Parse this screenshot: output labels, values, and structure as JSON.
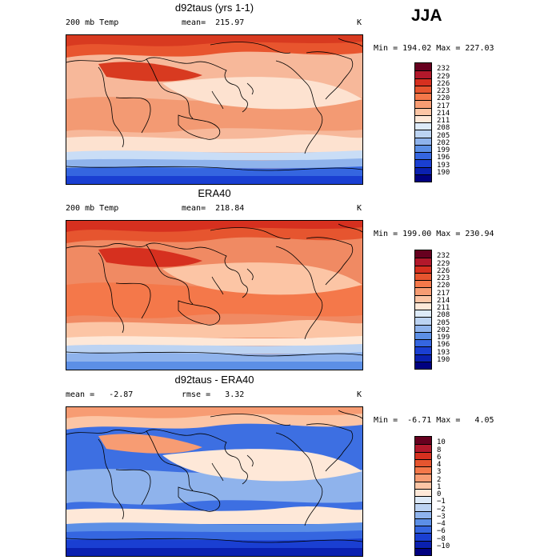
{
  "season": "JJA",
  "panels": [
    {
      "title": "d92taus (yrs 1-1)",
      "left_label": "200 mb Temp",
      "center_label": "mean=  215.97",
      "units": "K",
      "minmax": "Min = 194.02 Max = 227.03",
      "colorbar": {
        "labels": [
          "232",
          "229",
          "226",
          "223",
          "220",
          "217",
          "214",
          "211",
          "208",
          "205",
          "202",
          "199",
          "196",
          "193",
          "190"
        ],
        "colors": [
          "#67001f",
          "#b2182b",
          "#d6301f",
          "#e6552f",
          "#f4784a",
          "#f79c73",
          "#fcc5a5",
          "#fee8d8",
          "#ddeaf8",
          "#bcd3f2",
          "#8fb3ec",
          "#5c8fe6",
          "#3566e0",
          "#1a3fd2",
          "#0a20b0",
          "#000080"
        ]
      },
      "map_colors": {
        "base": "#f7b89a",
        "band_warm": "#e8552e",
        "band_hot": "#d83a20",
        "band_mid": "#f39a73",
        "band_pale": "#fde2d0",
        "band_cold1": "#c9ddf6",
        "band_cold2": "#8fb3ec",
        "band_cold3": "#3566e0",
        "band_cold4": "#1a3fd2"
      }
    },
    {
      "title": "ERA40",
      "left_label": "200 mb Temp",
      "center_label": "mean=  218.84",
      "units": "K",
      "minmax": "Min = 199.00 Max = 230.94",
      "colorbar": {
        "labels": [
          "232",
          "229",
          "226",
          "223",
          "220",
          "217",
          "214",
          "211",
          "208",
          "205",
          "202",
          "199",
          "196",
          "193",
          "190"
        ],
        "colors": [
          "#67001f",
          "#b2182b",
          "#d6301f",
          "#e6552f",
          "#f4784a",
          "#f79c73",
          "#fcc5a5",
          "#fee8d8",
          "#ddeaf8",
          "#bcd3f2",
          "#8fb3ec",
          "#5c8fe6",
          "#3566e0",
          "#1a3fd2",
          "#0a20b0",
          "#000080"
        ]
      },
      "map_colors": {
        "base": "#f08a63",
        "band_warm": "#e6552f",
        "band_hot": "#d6301f",
        "band_mid": "#f4784a",
        "band_pale": "#fcc5a5",
        "band_cold1": "#fee8d8",
        "band_cold2": "#bcd3f2",
        "band_cold3": "#8fb3ec",
        "band_cold4": "#5c8fe6"
      }
    },
    {
      "title": "d92taus - ERA40",
      "left_label": "mean =   -2.87",
      "center_label": "rmse =   3.32",
      "units": "K",
      "minmax": "Min =  -6.71 Max =   4.05",
      "colorbar": {
        "labels": [
          "10",
          "8",
          "6",
          "4",
          "3",
          "2",
          "1",
          "0",
          "−1",
          "−2",
          "−3",
          "−4",
          "−6",
          "−8",
          "−10"
        ],
        "colors": [
          "#67001f",
          "#b2182b",
          "#d6301f",
          "#e6552f",
          "#f4784a",
          "#f79c73",
          "#fcc5a5",
          "#fee8d8",
          "#ddeaf8",
          "#bcd3f2",
          "#8fb3ec",
          "#5c8fe6",
          "#3566e0",
          "#1a3fd2",
          "#0a20b0",
          "#000080"
        ]
      },
      "map_colors": {
        "base": "#3d6fe2",
        "band_warm": "#fcc5a5",
        "band_hot": "#f79c73",
        "band_mid": "#8fb3ec",
        "band_pale": "#fee8d8",
        "band_cold1": "#5c8fe6",
        "band_cold2": "#3566e0",
        "band_cold3": "#1a3fd2",
        "band_cold4": "#0a20b0"
      }
    }
  ]
}
